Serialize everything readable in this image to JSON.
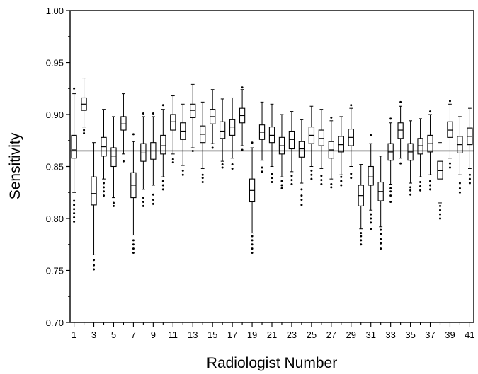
{
  "chart_data": {
    "type": "boxplot",
    "xlabel": "Radiologist Number",
    "ylabel": "Sensitivity",
    "ylim": [
      0.7,
      1.0
    ],
    "yticks": [
      "0.70",
      "0.75",
      "0.80",
      "0.85",
      "0.90",
      "0.95",
      "1.00"
    ],
    "xticks": [
      "1",
      "3",
      "5",
      "7",
      "9",
      "11",
      "13",
      "15",
      "17",
      "19",
      "21",
      "23",
      "25",
      "27",
      "29",
      "31",
      "33",
      "35",
      "37",
      "39",
      "41"
    ],
    "reference_line": 0.865,
    "grid": false,
    "x": [
      1,
      2,
      3,
      4,
      5,
      6,
      7,
      8,
      9,
      10,
      11,
      12,
      13,
      14,
      15,
      16,
      17,
      18,
      19,
      20,
      21,
      22,
      23,
      24,
      25,
      26,
      27,
      28,
      29,
      30,
      31,
      32,
      33,
      34,
      35,
      36,
      37,
      38,
      39,
      40,
      41
    ],
    "boxes": [
      {
        "x": 1,
        "q1": 0.858,
        "median": 0.866,
        "q3": 0.88,
        "whislo": 0.825,
        "whishi": 0.92,
        "outliers": [
          0.797,
          0.801,
          0.805,
          0.809,
          0.813,
          0.817,
          0.925
        ]
      },
      {
        "x": 2,
        "q1": 0.904,
        "median": 0.91,
        "q3": 0.916,
        "whislo": 0.888,
        "whishi": 0.935,
        "outliers": [
          0.882,
          0.885
        ]
      },
      {
        "x": 3,
        "q1": 0.813,
        "median": 0.824,
        "q3": 0.84,
        "whislo": 0.765,
        "whishi": 0.873,
        "outliers": [
          0.751,
          0.755,
          0.76
        ]
      },
      {
        "x": 4,
        "q1": 0.86,
        "median": 0.869,
        "q3": 0.878,
        "whislo": 0.838,
        "whishi": 0.905,
        "outliers": [
          0.822,
          0.826,
          0.83,
          0.834
        ]
      },
      {
        "x": 5,
        "q1": 0.85,
        "median": 0.86,
        "q3": 0.868,
        "whislo": 0.82,
        "whishi": 0.898,
        "outliers": [
          0.812,
          0.815
        ]
      },
      {
        "x": 6,
        "q1": 0.885,
        "median": 0.891,
        "q3": 0.898,
        "whislo": 0.862,
        "whishi": 0.92,
        "outliers": [
          0.855
        ]
      },
      {
        "x": 7,
        "q1": 0.82,
        "median": 0.832,
        "q3": 0.844,
        "whislo": 0.784,
        "whishi": 0.874,
        "outliers": [
          0.767,
          0.771,
          0.775,
          0.779,
          0.881
        ]
      },
      {
        "x": 8,
        "q1": 0.855,
        "median": 0.863,
        "q3": 0.872,
        "whislo": 0.828,
        "whishi": 0.898,
        "outliers": [
          0.812,
          0.816,
          0.82,
          0.901
        ]
      },
      {
        "x": 9,
        "q1": 0.857,
        "median": 0.865,
        "q3": 0.873,
        "whislo": 0.832,
        "whishi": 0.898,
        "outliers": [
          0.814,
          0.818,
          0.823,
          0.901
        ]
      },
      {
        "x": 10,
        "q1": 0.862,
        "median": 0.87,
        "q3": 0.88,
        "whislo": 0.84,
        "whishi": 0.905,
        "outliers": [
          0.828,
          0.832,
          0.836,
          0.909
        ]
      },
      {
        "x": 11,
        "q1": 0.885,
        "median": 0.893,
        "q3": 0.9,
        "whislo": 0.862,
        "whishi": 0.918,
        "outliers": [
          0.854,
          0.857
        ]
      },
      {
        "x": 12,
        "q1": 0.876,
        "median": 0.884,
        "q3": 0.892,
        "whislo": 0.851,
        "whishi": 0.91,
        "outliers": [
          0.842,
          0.846
        ]
      },
      {
        "x": 13,
        "q1": 0.897,
        "median": 0.904,
        "q3": 0.91,
        "whislo": 0.868,
        "whishi": 0.929,
        "outliers": [
          0.865
        ]
      },
      {
        "x": 14,
        "q1": 0.873,
        "median": 0.881,
        "q3": 0.889,
        "whislo": 0.848,
        "whishi": 0.912,
        "outliers": [
          0.835,
          0.839,
          0.842
        ]
      },
      {
        "x": 15,
        "q1": 0.891,
        "median": 0.898,
        "q3": 0.905,
        "whislo": 0.872,
        "whishi": 0.924,
        "outliers": [
          0.868
        ]
      },
      {
        "x": 16,
        "q1": 0.877,
        "median": 0.884,
        "q3": 0.893,
        "whislo": 0.855,
        "whishi": 0.915,
        "outliers": [
          0.849,
          0.852
        ]
      },
      {
        "x": 17,
        "q1": 0.88,
        "median": 0.888,
        "q3": 0.895,
        "whislo": 0.858,
        "whishi": 0.916,
        "outliers": [
          0.848,
          0.852
        ]
      },
      {
        "x": 18,
        "q1": 0.892,
        "median": 0.899,
        "q3": 0.906,
        "whislo": 0.87,
        "whishi": 0.924,
        "outliers": [
          0.866,
          0.926
        ]
      },
      {
        "x": 19,
        "q1": 0.816,
        "median": 0.827,
        "q3": 0.838,
        "whislo": 0.786,
        "whishi": 0.868,
        "outliers": [
          0.767,
          0.771,
          0.775,
          0.779,
          0.783,
          0.873
        ]
      },
      {
        "x": 20,
        "q1": 0.876,
        "median": 0.883,
        "q3": 0.89,
        "whislo": 0.856,
        "whishi": 0.912,
        "outliers": [
          0.845,
          0.849
        ]
      },
      {
        "x": 21,
        "q1": 0.873,
        "median": 0.88,
        "q3": 0.888,
        "whislo": 0.85,
        "whishi": 0.91,
        "outliers": [
          0.835,
          0.839,
          0.843
        ]
      },
      {
        "x": 22,
        "q1": 0.862,
        "median": 0.87,
        "q3": 0.878,
        "whislo": 0.84,
        "whishi": 0.9,
        "outliers": [
          0.829,
          0.832,
          0.836
        ]
      },
      {
        "x": 23,
        "q1": 0.867,
        "median": 0.876,
        "q3": 0.884,
        "whislo": 0.845,
        "whishi": 0.903,
        "outliers": [
          0.833,
          0.837,
          0.841
        ]
      },
      {
        "x": 24,
        "q1": 0.859,
        "median": 0.867,
        "q3": 0.874,
        "whislo": 0.834,
        "whishi": 0.895,
        "outliers": [
          0.813,
          0.818,
          0.822,
          0.828
        ]
      },
      {
        "x": 25,
        "q1": 0.872,
        "median": 0.88,
        "q3": 0.888,
        "whislo": 0.85,
        "whishi": 0.908,
        "outliers": [
          0.838,
          0.842,
          0.846
        ]
      },
      {
        "x": 26,
        "q1": 0.87,
        "median": 0.877,
        "q3": 0.885,
        "whislo": 0.848,
        "whishi": 0.905,
        "outliers": [
          0.833,
          0.837,
          0.841
        ]
      },
      {
        "x": 27,
        "q1": 0.858,
        "median": 0.866,
        "q3": 0.874,
        "whislo": 0.838,
        "whishi": 0.894,
        "outliers": [
          0.83,
          0.833,
          0.897
        ]
      },
      {
        "x": 28,
        "q1": 0.864,
        "median": 0.871,
        "q3": 0.879,
        "whislo": 0.842,
        "whishi": 0.898,
        "outliers": [
          0.832,
          0.836,
          0.84
        ]
      },
      {
        "x": 29,
        "q1": 0.87,
        "median": 0.878,
        "q3": 0.886,
        "whislo": 0.85,
        "whishi": 0.906,
        "outliers": [
          0.839,
          0.843,
          0.909
        ]
      },
      {
        "x": 30,
        "q1": 0.812,
        "median": 0.822,
        "q3": 0.832,
        "whislo": 0.79,
        "whishi": 0.852,
        "outliers": [
          0.775,
          0.779,
          0.783,
          0.786
        ]
      },
      {
        "x": 31,
        "q1": 0.832,
        "median": 0.84,
        "q3": 0.85,
        "whislo": 0.808,
        "whishi": 0.872,
        "outliers": [
          0.79,
          0.796,
          0.8,
          0.804,
          0.88
        ]
      },
      {
        "x": 32,
        "q1": 0.817,
        "median": 0.826,
        "q3": 0.835,
        "whislo": 0.792,
        "whishi": 0.86,
        "outliers": [
          0.771,
          0.776,
          0.78,
          0.785,
          0.789
        ]
      },
      {
        "x": 33,
        "q1": 0.856,
        "median": 0.864,
        "q3": 0.872,
        "whislo": 0.833,
        "whishi": 0.892,
        "outliers": [
          0.816,
          0.822,
          0.826,
          0.829,
          0.896
        ]
      },
      {
        "x": 34,
        "q1": 0.877,
        "median": 0.885,
        "q3": 0.892,
        "whislo": 0.858,
        "whishi": 0.908,
        "outliers": [
          0.853,
          0.912
        ]
      },
      {
        "x": 35,
        "q1": 0.856,
        "median": 0.864,
        "q3": 0.872,
        "whislo": 0.834,
        "whishi": 0.894,
        "outliers": [
          0.823,
          0.827,
          0.83
        ]
      },
      {
        "x": 36,
        "q1": 0.862,
        "median": 0.87,
        "q3": 0.877,
        "whislo": 0.84,
        "whishi": 0.896,
        "outliers": [
          0.827,
          0.831,
          0.835
        ]
      },
      {
        "x": 37,
        "q1": 0.864,
        "median": 0.872,
        "q3": 0.88,
        "whislo": 0.842,
        "whishi": 0.9,
        "outliers": [
          0.828,
          0.832,
          0.836,
          0.903
        ]
      },
      {
        "x": 38,
        "q1": 0.838,
        "median": 0.846,
        "q3": 0.855,
        "whislo": 0.815,
        "whishi": 0.873,
        "outliers": [
          0.8,
          0.804,
          0.808,
          0.812
        ]
      },
      {
        "x": 39,
        "q1": 0.878,
        "median": 0.885,
        "q3": 0.893,
        "whislo": 0.858,
        "whishi": 0.91,
        "outliers": [
          0.849,
          0.853,
          0.913
        ]
      },
      {
        "x": 40,
        "q1": 0.863,
        "median": 0.871,
        "q3": 0.879,
        "whislo": 0.842,
        "whishi": 0.898,
        "outliers": [
          0.825,
          0.829,
          0.834
        ]
      },
      {
        "x": 41,
        "q1": 0.871,
        "median": 0.879,
        "q3": 0.887,
        "whislo": 0.848,
        "whishi": 0.906,
        "outliers": [
          0.834,
          0.838,
          0.842
        ]
      }
    ]
  }
}
